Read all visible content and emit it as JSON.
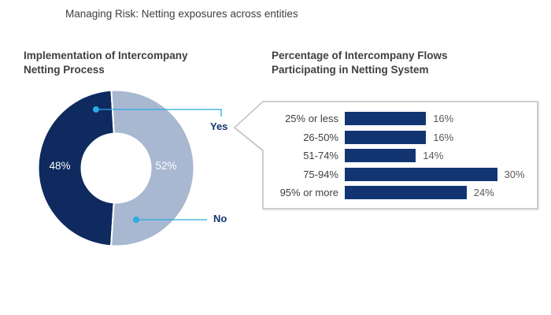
{
  "title": "Managing Risk: Netting exposures across entities",
  "colors": {
    "accent_cyan": "#29ABE2",
    "donut_yes_navy": "#0E2A5F",
    "donut_no_light_blue": "#A9B8D1",
    "bar_navy": "#123572",
    "callout_border_gray": "#BFBFBF",
    "title_gray": "#3F3F3F",
    "value_label_gray": "#595959",
    "yes_no_label_navy": "#14356F"
  },
  "chart_data": [
    {
      "type": "pie",
      "donut": true,
      "title": "Implementation of Intercompany Netting Process",
      "slices": [
        {
          "label": "Yes",
          "value": 48,
          "value_label": "48%",
          "color": "#0E2A5F"
        },
        {
          "label": "No",
          "value": 52,
          "value_label": "52%",
          "color": "#A9B8D1"
        }
      ],
      "start_angle_deg": -3.5,
      "draw_order": [
        1,
        0
      ],
      "legend_position": "callout-leader-lines",
      "callout_points_to": "Yes"
    },
    {
      "type": "bar",
      "orientation": "horizontal",
      "title": "Percentage of Intercompany Flows Participating in Netting System",
      "categories": [
        "25% or less",
        "26-50%",
        "51-74%",
        "75-94%",
        "95% or more"
      ],
      "values": [
        16,
        16,
        14,
        30,
        24
      ],
      "value_labels": [
        "16%",
        "16%",
        "14%",
        "30%",
        "24%"
      ],
      "xlim": [
        0,
        32
      ],
      "grid": false,
      "in_callout": true
    }
  ]
}
